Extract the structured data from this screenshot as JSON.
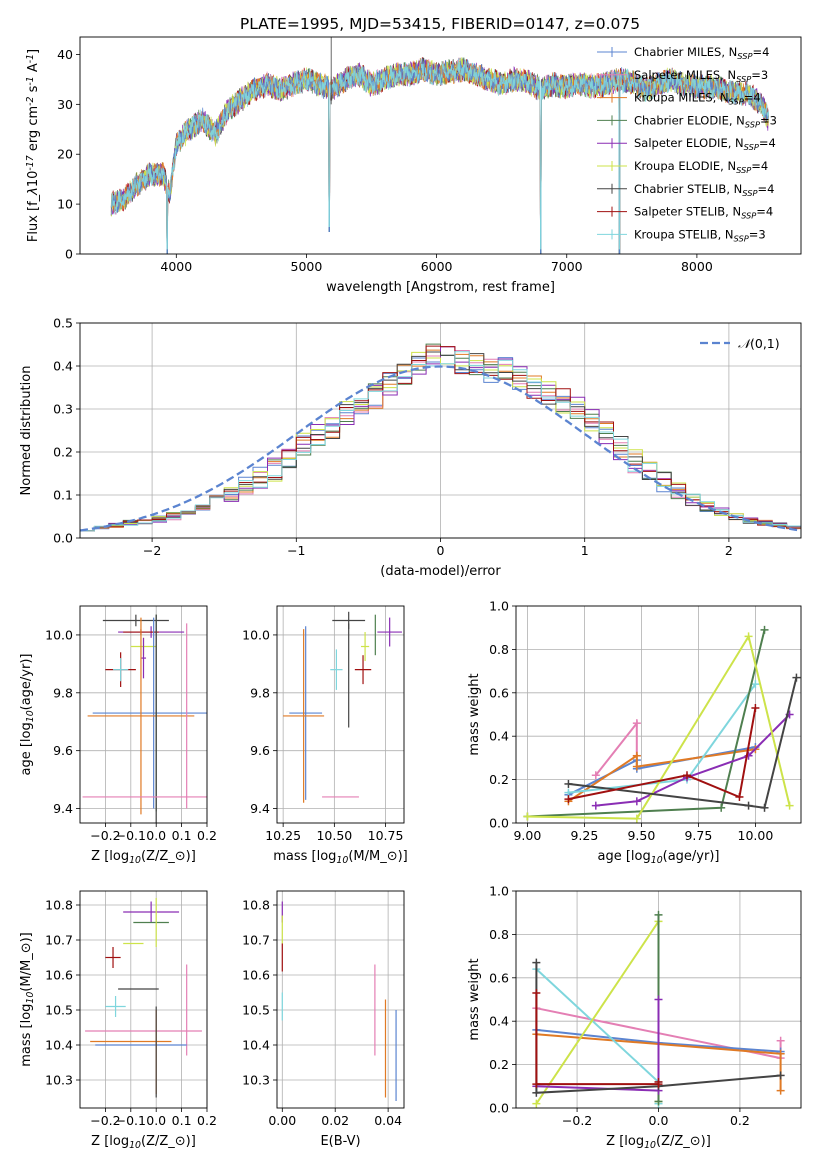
{
  "title": "PLATE=1995, MJD=53415, FIBERID=0147, z=0.075",
  "legend": [
    {
      "label": "Chabrier MILES, N$_{SSP}$=4",
      "color": "#5b84d0"
    },
    {
      "label": "Salpeter MILES, N$_{SSP}$=3",
      "color": "#e47fb4"
    },
    {
      "label": "Kroupa MILES, N$_{SSP}$=4",
      "color": "#e07a25"
    },
    {
      "label": "Chabrier ELODIE, N$_{SSP}$=3",
      "color": "#4f7f4f"
    },
    {
      "label": "Salpeter ELODIE, N$_{SSP}$=4",
      "color": "#8a2db4"
    },
    {
      "label": "Kroupa ELODIE, N$_{SSP}$=4",
      "color": "#cde34a"
    },
    {
      "label": "Chabrier STELIB, N$_{SSP}$=4",
      "color": "#444444"
    },
    {
      "label": "Salpeter STELIB, N$_{SSP}$=4",
      "color": "#a01010"
    },
    {
      "label": "Kroupa STELIB, N$_{SSP}$=3",
      "color": "#7fd6dd"
    }
  ],
  "chart_data": [
    {
      "id": "spectrum",
      "type": "line",
      "xlabel": "wavelength [Angstrom, rest frame]",
      "ylabel": "Flux [f$_\\lambda$10$^{-17}$ erg cm$^{-2}$ s$^{-1}$ A$^{-1}$]",
      "xlim": [
        3260,
        8800
      ],
      "ylim": [
        0,
        43.5
      ],
      "xticks": [
        4000,
        5000,
        6000,
        7000,
        8000
      ],
      "yticks": [
        0,
        10,
        20,
        30,
        40
      ],
      "grid": false,
      "legend_position": "top-right",
      "x": [
        3500,
        3600,
        3700,
        3800,
        3900,
        3950,
        4000,
        4100,
        4200,
        4300,
        4400,
        4500,
        4600,
        4700,
        4800,
        4900,
        5000,
        5100,
        5200,
        5300,
        5400,
        5500,
        5600,
        5700,
        5800,
        5900,
        6000,
        6100,
        6200,
        6300,
        6400,
        6500,
        6600,
        6700,
        6800,
        6900,
        7000,
        7100,
        7200,
        7300,
        7400,
        7500,
        7600,
        7700,
        7800,
        7900,
        8000,
        8100,
        8200,
        8300,
        8400,
        8500,
        8550
      ],
      "flux": [
        10,
        11,
        14,
        16,
        16,
        12,
        22,
        25,
        27,
        24,
        29,
        31,
        33,
        34,
        33,
        34,
        35,
        34,
        33,
        35,
        36,
        34,
        35,
        36,
        36,
        37,
        36,
        36.5,
        37,
        36,
        35,
        34,
        35,
        34.5,
        33,
        34,
        33.5,
        34,
        33.5,
        34,
        35,
        34.5,
        33,
        34,
        35,
        34,
        33.5,
        33.5,
        33,
        32.5,
        32,
        30,
        27
      ],
      "absorption": [
        {
          "x": 3930,
          "depth": 0
        },
        {
          "x": 5175,
          "depth": 4.5
        },
        {
          "x": 6800,
          "depth": 0
        },
        {
          "x": 7405,
          "depth": 0
        }
      ]
    },
    {
      "id": "residual-histogram",
      "type": "histogram",
      "xlabel": "(data-model)/error",
      "ylabel": "Normed distribution",
      "xlim": [
        -2.5,
        2.5
      ],
      "ylim": [
        0,
        0.5
      ],
      "xticks": [
        -2,
        -1,
        0,
        1,
        2
      ],
      "yticks": [
        0.0,
        0.1,
        0.2,
        0.3,
        0.4,
        0.5
      ],
      "grid": true,
      "legend_position": "top-right",
      "reference_label": "$\\mathcal{N}(0,1)$",
      "bin_width": 0.1,
      "bin_start": -2.5,
      "heights": [
        0.02,
        0.025,
        0.03,
        0.035,
        0.04,
        0.045,
        0.05,
        0.06,
        0.07,
        0.085,
        0.1,
        0.12,
        0.14,
        0.16,
        0.19,
        0.22,
        0.24,
        0.26,
        0.29,
        0.31,
        0.33,
        0.36,
        0.38,
        0.41,
        0.43,
        0.42,
        0.41,
        0.4,
        0.39,
        0.39,
        0.37,
        0.35,
        0.34,
        0.32,
        0.3,
        0.27,
        0.24,
        0.21,
        0.18,
        0.16,
        0.13,
        0.11,
        0.09,
        0.075,
        0.06,
        0.05,
        0.04,
        0.035,
        0.03,
        0.025
      ]
    },
    {
      "id": "age-vs-metallicity",
      "type": "errorbar",
      "xlabel": "Z [log$_{10}$(Z/Z$_\\odot$)]",
      "ylabel": "age  [log$_{10}$(age/yr)]",
      "xlim": [
        -0.3,
        0.2
      ],
      "ylim": [
        9.35,
        10.1
      ],
      "xticks": [
        -0.2,
        -0.1,
        0.0,
        0.1,
        0.2
      ],
      "yticks": [
        9.4,
        9.6,
        9.8,
        10.0
      ],
      "grid": true,
      "points": [
        {
          "x": -0.08,
          "y": 10.05,
          "xerr": 0.13,
          "yerr": 0.02,
          "color": "#444444"
        },
        {
          "x": -0.02,
          "y": 10.01,
          "xerr": 0.13,
          "yerr": 0.02,
          "color": "#8a2db4"
        },
        {
          "x": -0.06,
          "y": 10.01,
          "xerr": 0.07,
          "yerr": 0.01,
          "color": "#a01010"
        },
        {
          "x": -0.05,
          "y": 9.96,
          "xerr": 0.05,
          "yerr": 0.03,
          "color": "#cde34a"
        },
        {
          "x": -0.14,
          "y": 9.88,
          "xerr": 0.06,
          "yerr": 0.06,
          "color": "#a01010"
        },
        {
          "x": -0.14,
          "y": 9.88,
          "xerr": 0.03,
          "yerr": 0.04,
          "color": "#7fd6dd"
        },
        {
          "x": -0.05,
          "y": 9.92,
          "xerr": 0.01,
          "yerr": 0.07,
          "color": "#8a2db4"
        },
        {
          "x": -0.01,
          "y": 9.73,
          "xerr": 0.24,
          "yerr": 0.33,
          "color": "#5b84d0"
        },
        {
          "x": -0.06,
          "y": 9.72,
          "xerr": 0.21,
          "yerr": 0.34,
          "color": "#e07a25"
        },
        {
          "x": 0.0,
          "y": 9.73,
          "xerr": 0.0,
          "yerr": 0.34,
          "color": "#4f7f4f"
        },
        {
          "x": 0.0,
          "y": 9.44,
          "xerr": 0.0,
          "yerr": 0.63,
          "color": "#444444"
        },
        {
          "x": -0.02,
          "y": 9.44,
          "xerr": 0.27,
          "yerr": 0.0,
          "color": "#e47fb4"
        },
        {
          "x": 0.12,
          "y": 9.72,
          "xerr": 0.0,
          "yerr": 0.32,
          "color": "#e47fb4"
        }
      ]
    },
    {
      "id": "age-vs-mass",
      "type": "errorbar",
      "xlabel": "mass [log$_{10}$(M/M$_\\odot$)]",
      "ylabel": "",
      "xlim": [
        10.22,
        10.84
      ],
      "ylim": [
        9.35,
        10.1
      ],
      "xticks": [
        10.25,
        10.5,
        10.75
      ],
      "yticks": [
        9.4,
        9.6,
        9.8,
        10.0
      ],
      "grid": true,
      "points": [
        {
          "x": 10.57,
          "y": 10.05,
          "xerr": 0.08,
          "yerr": 0.03,
          "color": "#444444"
        },
        {
          "x": 10.77,
          "y": 10.01,
          "xerr": 0.06,
          "yerr": 0.05,
          "color": "#8a2db4"
        },
        {
          "x": 10.7,
          "y": 10.0,
          "xerr": 0.0,
          "yerr": 0.07,
          "color": "#4f7f4f"
        },
        {
          "x": 10.65,
          "y": 9.96,
          "xerr": 0.02,
          "yerr": 0.05,
          "color": "#cde34a"
        },
        {
          "x": 10.64,
          "y": 9.88,
          "xerr": 0.04,
          "yerr": 0.05,
          "color": "#a01010"
        },
        {
          "x": 10.51,
          "y": 9.88,
          "xerr": 0.03,
          "yerr": 0.07,
          "color": "#7fd6dd"
        },
        {
          "x": 10.36,
          "y": 9.73,
          "xerr": 0.08,
          "yerr": 0.3,
          "color": "#5b84d0"
        },
        {
          "x": 10.35,
          "y": 9.72,
          "xerr": 0.1,
          "yerr": 0.3,
          "color": "#e07a25"
        },
        {
          "x": 10.53,
          "y": 9.44,
          "xerr": 0.09,
          "yerr": 0.0,
          "color": "#e47fb4"
        },
        {
          "x": 10.57,
          "y": 9.86,
          "xerr": 0.0,
          "yerr": 0.18,
          "color": "#444444"
        }
      ]
    },
    {
      "id": "weight-vs-age",
      "type": "line",
      "xlabel": "age  [log$_{10}$(age/yr)]",
      "ylabel": "mass weight",
      "xlim": [
        8.95,
        10.2
      ],
      "ylim": [
        0.0,
        1.0
      ],
      "xticks": [
        9.0,
        9.25,
        9.5,
        9.75,
        10.0
      ],
      "yticks": [
        0.0,
        0.2,
        0.4,
        0.6,
        0.8,
        1.0
      ],
      "grid": true,
      "series": [
        {
          "color": "#e47fb4",
          "x": [
            9.3,
            9.48,
            9.48
          ],
          "y": [
            0.22,
            0.46,
            0.31
          ]
        },
        {
          "color": "#5b84d0",
          "x": [
            9.18,
            9.48,
            9.48,
            10.0
          ],
          "y": [
            0.13,
            0.29,
            0.25,
            0.35
          ]
        },
        {
          "color": "#e07a25",
          "x": [
            9.18,
            9.48,
            9.48,
            10.0
          ],
          "y": [
            0.1,
            0.31,
            0.26,
            0.34
          ]
        },
        {
          "color": "#7fd6dd",
          "x": [
            9.18,
            9.7,
            10.0
          ],
          "y": [
            0.14,
            0.2,
            0.64
          ]
        },
        {
          "color": "#4f7f4f",
          "x": [
            9.0,
            9.85,
            10.04
          ],
          "y": [
            0.03,
            0.07,
            0.89
          ]
        },
        {
          "color": "#8a2db4",
          "x": [
            9.3,
            9.48,
            9.7,
            9.97,
            10.15
          ],
          "y": [
            0.08,
            0.1,
            0.21,
            0.31,
            0.5
          ]
        },
        {
          "color": "#cde34a",
          "x": [
            9.0,
            9.48,
            9.97,
            10.15
          ],
          "y": [
            0.03,
            0.02,
            0.86,
            0.08
          ]
        },
        {
          "color": "#444444",
          "x": [
            9.18,
            9.97,
            10.04,
            10.18
          ],
          "y": [
            0.18,
            0.08,
            0.07,
            0.67
          ]
        },
        {
          "color": "#a01010",
          "x": [
            9.18,
            9.7,
            9.93,
            10.0
          ],
          "y": [
            0.11,
            0.22,
            0.12,
            0.53
          ]
        }
      ]
    },
    {
      "id": "mass-vs-metallicity",
      "type": "errorbar",
      "xlabel": "Z [log$_{10}$(Z/Z$_\\odot$)]",
      "ylabel": "mass [log$_{10}$(M/M$_\\odot$)]",
      "xlim": [
        -0.3,
        0.2
      ],
      "ylim": [
        10.22,
        10.84
      ],
      "xticks": [
        -0.2,
        -0.1,
        0.0,
        0.1,
        0.2
      ],
      "yticks": [
        10.3,
        10.4,
        10.5,
        10.6,
        10.7,
        10.8
      ],
      "grid": true,
      "points": [
        {
          "x": -0.02,
          "y": 10.78,
          "xerr": 0.11,
          "yerr": 0.03,
          "color": "#8a2db4"
        },
        {
          "x": -0.02,
          "y": 10.75,
          "xerr": 0.07,
          "yerr": 0.0,
          "color": "#4f7f4f"
        },
        {
          "x": 0.0,
          "y": 10.75,
          "xerr": 0.0,
          "yerr": 0.07,
          "color": "#cde34a"
        },
        {
          "x": -0.09,
          "y": 10.69,
          "xerr": 0.04,
          "yerr": 0.0,
          "color": "#cde34a"
        },
        {
          "x": -0.17,
          "y": 10.65,
          "xerr": 0.03,
          "yerr": 0.03,
          "color": "#a01010"
        },
        {
          "x": -0.07,
          "y": 10.56,
          "xerr": 0.08,
          "yerr": 0.0,
          "color": "#444444"
        },
        {
          "x": -0.16,
          "y": 10.51,
          "xerr": 0.04,
          "yerr": 0.03,
          "color": "#7fd6dd"
        },
        {
          "x": 0.12,
          "y": 10.5,
          "xerr": 0.0,
          "yerr": 0.13,
          "color": "#e47fb4"
        },
        {
          "x": -0.05,
          "y": 10.44,
          "xerr": 0.23,
          "yerr": 0.0,
          "color": "#e47fb4"
        },
        {
          "x": -0.1,
          "y": 10.41,
          "xerr": 0.16,
          "yerr": 0.0,
          "color": "#e07a25"
        },
        {
          "x": -0.06,
          "y": 10.4,
          "xerr": 0.18,
          "yerr": 0.0,
          "color": "#5b84d0"
        },
        {
          "x": 0.0,
          "y": 10.38,
          "xerr": 0.0,
          "yerr": 0.12,
          "color": "#e07a25"
        },
        {
          "x": 0.0,
          "y": 10.38,
          "xerr": 0.0,
          "yerr": 0.13,
          "color": "#444444"
        }
      ]
    },
    {
      "id": "mass-vs-ebv",
      "type": "errorbar",
      "xlabel": "E(B-V)",
      "ylabel": "",
      "xlim": [
        -0.002,
        0.046
      ],
      "ylim": [
        10.22,
        10.84
      ],
      "xticks": [
        0.0,
        0.02,
        0.04
      ],
      "yticks": [
        10.3,
        10.4,
        10.5,
        10.6,
        10.7,
        10.8
      ],
      "grid": true,
      "points": [
        {
          "x": 0.0,
          "y": 10.78,
          "xerr": 0.0,
          "yerr": 0.03,
          "color": "#8a2db4"
        },
        {
          "x": 0.0,
          "y": 10.73,
          "xerr": 0.0,
          "yerr": 0.04,
          "color": "#cde34a"
        },
        {
          "x": 0.0,
          "y": 10.65,
          "xerr": 0.0,
          "yerr": 0.04,
          "color": "#a01010"
        },
        {
          "x": 0.0,
          "y": 10.51,
          "xerr": 0.0,
          "yerr": 0.04,
          "color": "#7fd6dd"
        },
        {
          "x": 0.035,
          "y": 10.5,
          "xerr": 0.0,
          "yerr": 0.13,
          "color": "#e47fb4"
        },
        {
          "x": 0.039,
          "y": 10.39,
          "xerr": 0.0,
          "yerr": 0.14,
          "color": "#e07a25"
        },
        {
          "x": 0.043,
          "y": 10.37,
          "xerr": 0.0,
          "yerr": 0.13,
          "color": "#5b84d0"
        }
      ]
    },
    {
      "id": "weight-vs-metallicity",
      "type": "line",
      "xlabel": "Z [log$_{10}$(Z/Z$_\\odot$)]",
      "ylabel": "mass weight",
      "xlim": [
        -0.35,
        0.35
      ],
      "ylim": [
        0.0,
        1.0
      ],
      "xticks": [
        -0.2,
        0.0,
        0.2
      ],
      "yticks": [
        0.0,
        0.2,
        0.4,
        0.6,
        0.8,
        1.0
      ],
      "grid": true,
      "series": [
        {
          "color": "#e47fb4",
          "x": [
            -0.3,
            0.3,
            0.3
          ],
          "y": [
            0.46,
            0.23,
            0.31
          ]
        },
        {
          "color": "#5b84d0",
          "x": [
            -0.3,
            0.0,
            0.3
          ],
          "y": [
            0.36,
            0.3,
            0.26
          ]
        },
        {
          "color": "#e07a25",
          "x": [
            -0.3,
            0.3,
            0.3
          ],
          "y": [
            0.34,
            0.25,
            0.08
          ]
        },
        {
          "color": "#7fd6dd",
          "x": [
            -0.3,
            0.0,
            0.0
          ],
          "y": [
            0.64,
            0.12,
            0.02
          ]
        },
        {
          "color": "#cde34a",
          "x": [
            -0.3,
            0.0,
            0.0
          ],
          "y": [
            0.02,
            0.86,
            0.03
          ]
        },
        {
          "color": "#4f7f4f",
          "x": [
            0.0,
            0.0
          ],
          "y": [
            0.89,
            0.03
          ]
        },
        {
          "color": "#8a2db4",
          "x": [
            -0.3,
            0.0,
            0.0
          ],
          "y": [
            0.1,
            0.08,
            0.5
          ]
        },
        {
          "color": "#444444",
          "x": [
            -0.3,
            -0.3,
            0.0,
            0.3
          ],
          "y": [
            0.67,
            0.07,
            0.1,
            0.15
          ]
        },
        {
          "color": "#a01010",
          "x": [
            -0.3,
            -0.3,
            0.0,
            0.0
          ],
          "y": [
            0.53,
            0.11,
            0.11,
            0.12
          ]
        }
      ]
    }
  ]
}
